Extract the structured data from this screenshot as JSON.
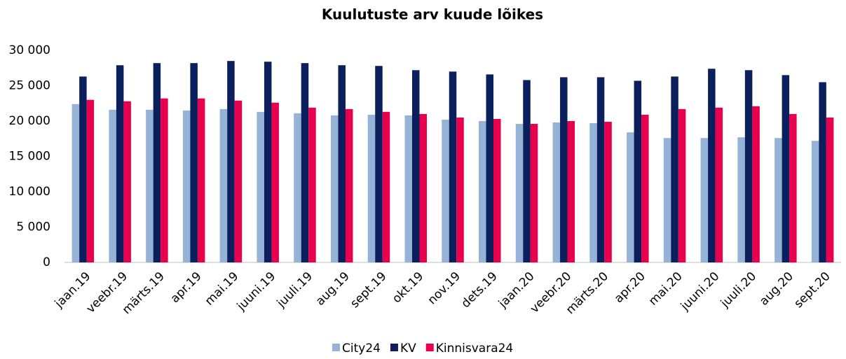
{
  "chart_data": {
    "type": "bar",
    "title": "Kuulutuste arv kuude lõikes",
    "categories": [
      "jaan.19",
      "veebr.19",
      "märts.19",
      "apr.19",
      "mai.19",
      "juuni.19",
      "juuli.19",
      "aug.19",
      "sept.19",
      "okt.19",
      "nov.19",
      "dets.19",
      "jaan.20",
      "veebr.20",
      "märts.20",
      "apr.20",
      "mai.20",
      "juuni.20",
      "juuli.20",
      "aug.20",
      "sept.20"
    ],
    "series": [
      {
        "name": "City24",
        "color": "#95b3d7",
        "values": [
          22400,
          21600,
          21600,
          21500,
          21700,
          21300,
          21100,
          20800,
          20900,
          20800,
          20200,
          20000,
          19600,
          19800,
          19700,
          18400,
          17600,
          17600,
          17700,
          17600,
          17200
        ]
      },
      {
        "name": "KV",
        "color": "#0a1f5c",
        "values": [
          26300,
          27900,
          28200,
          28200,
          28500,
          28400,
          28200,
          27900,
          27800,
          27200,
          27000,
          26600,
          25800,
          26200,
          26200,
          25700,
          26300,
          27400,
          27200,
          26500,
          25500
        ]
      },
      {
        "name": "Kinnisvara24",
        "color": "#e8004f",
        "values": [
          23000,
          22800,
          23200,
          23200,
          22900,
          22600,
          21900,
          21700,
          21300,
          21000,
          20500,
          20300,
          19600,
          20000,
          19900,
          20900,
          21700,
          21900,
          22100,
          21000,
          20500
        ]
      }
    ],
    "ylim": [
      0,
      30000
    ],
    "yticks": [
      0,
      {
        "value": 5000,
        "label": "5 000"
      },
      {
        "value": 10000,
        "label": "10 000"
      },
      {
        "value": 15000,
        "label": "15 000"
      },
      {
        "value": 20000,
        "label": "20 000"
      },
      {
        "value": 25000,
        "label": "25 000"
      },
      {
        "value": 30000,
        "label": "30 000"
      }
    ],
    "legend": "bottom"
  }
}
